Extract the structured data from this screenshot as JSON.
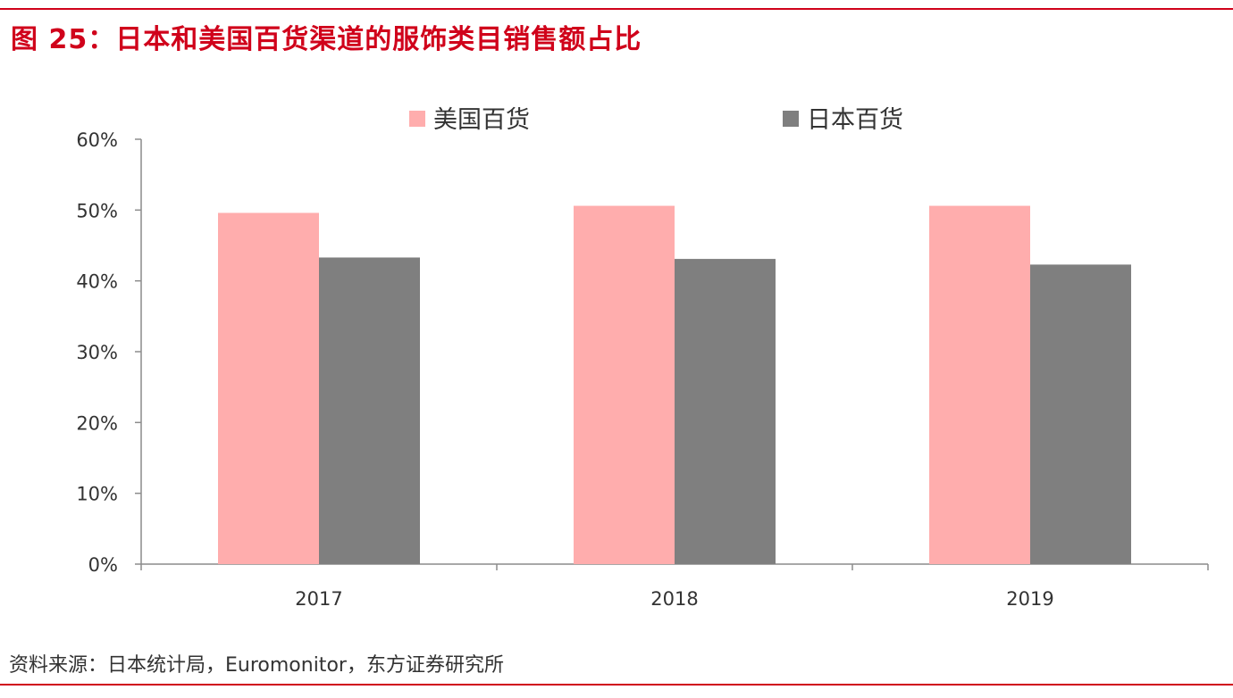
{
  "figure": {
    "title": "图 25：日本和美国百货渠道的服饰类目销售额占比",
    "source": "资料来源：日本统计局，Euromonitor，东方证券研究所",
    "accent_color": "#d0021b"
  },
  "chart_data": {
    "type": "bar",
    "title": "日本和美国百货渠道的服饰类目销售额占比",
    "xlabel": "",
    "ylabel": "",
    "categories": [
      "2017",
      "2018",
      "2019"
    ],
    "series": [
      {
        "name": "美国百货",
        "color": "#ffadad",
        "values": [
          49.6,
          50.6,
          50.6
        ]
      },
      {
        "name": "日本百货",
        "color": "#7f7f7f",
        "values": [
          43.3,
          43.1,
          42.3
        ]
      }
    ],
    "ylim": [
      0,
      60
    ],
    "yticks": [
      0,
      10,
      20,
      30,
      40,
      50,
      60
    ],
    "ytick_labels": [
      "0%",
      "10%",
      "20%",
      "30%",
      "40%",
      "50%",
      "60%"
    ],
    "legend_position": "top-center",
    "grid": false
  }
}
